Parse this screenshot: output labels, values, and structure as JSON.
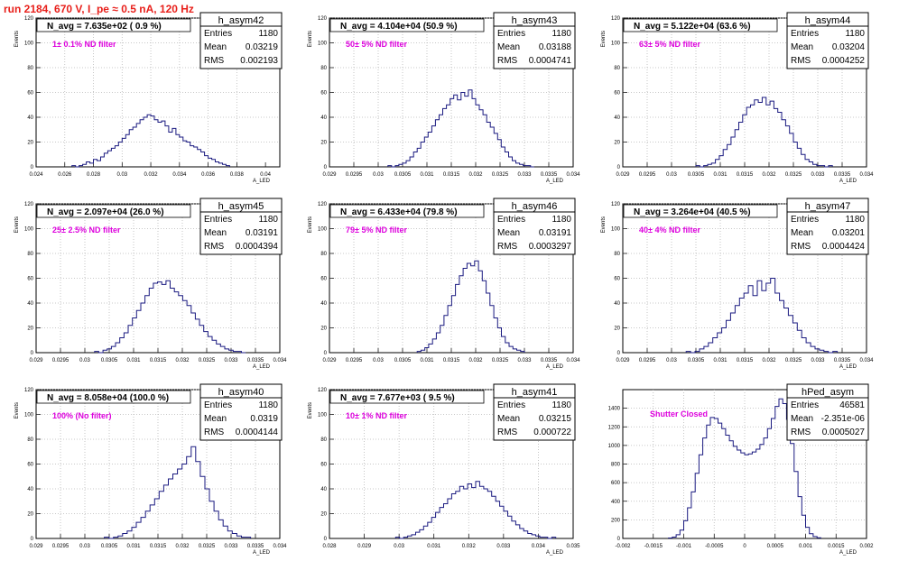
{
  "header": {
    "run_title": "run 2184,   670 V, I_pe ≈ 0.5 nA, 120 Hz"
  },
  "colors": {
    "histogram_line": "#1a1a80",
    "filter_label": "#dd00dd",
    "title": "#e8201b",
    "grid": "#b8b8b8"
  },
  "chart_data": [
    {
      "type": "histogram",
      "name": "h_asym42",
      "navg": "N_avg = 7.635e+02 ( 0.9 %)",
      "filter": "1± 0.1% ND filter",
      "stats": {
        "entries": "1180",
        "mean": "0.03219",
        "rms": "0.002193"
      },
      "xlabel": "A_LED",
      "ylabel": "Events",
      "xlim": [
        0.024,
        0.041
      ],
      "ylim": [
        0,
        120
      ],
      "grid": true,
      "xticks": [
        "0.024",
        "0.026",
        "0.028",
        "0.03",
        "0.032",
        "0.034",
        "0.036",
        "0.038",
        "0.04"
      ],
      "yticks": [
        "0",
        "20",
        "40",
        "60",
        "80",
        "100",
        "120"
      ],
      "bins": {
        "lo": 0.0265,
        "hi": 0.0375,
        "counts": [
          1,
          0,
          1,
          2,
          4,
          3,
          6,
          5,
          8,
          11,
          13,
          15,
          17,
          20,
          23,
          26,
          30,
          32,
          35,
          38,
          40,
          42,
          41,
          38,
          36,
          37,
          33,
          28,
          31,
          26,
          24,
          21,
          20,
          17,
          16,
          14,
          12,
          9,
          7,
          6,
          4,
          3,
          2,
          1
        ]
      }
    },
    {
      "type": "histogram",
      "name": "h_asym43",
      "navg": "N_avg = 4.104e+04 (50.9 %)",
      "filter": "50± 5% ND filter",
      "stats": {
        "entries": "1180",
        "mean": "0.03188",
        "rms": "0.0004741"
      },
      "xlabel": "A_LED",
      "ylabel": "Events",
      "xlim": [
        0.029,
        0.034
      ],
      "ylim": [
        0,
        120
      ],
      "grid": true,
      "xticks": [
        "0.029",
        "0.0295",
        "0.03",
        "0.0305",
        "0.031",
        "0.0315",
        "0.032",
        "0.0325",
        "0.033",
        "0.0335",
        "0.034"
      ],
      "yticks": [
        "0",
        "20",
        "40",
        "60",
        "80",
        "100",
        "120"
      ],
      "bins": {
        "lo": 0.0302,
        "hi": 0.0332,
        "counts": [
          1,
          0,
          1,
          2,
          3,
          5,
          8,
          12,
          15,
          20,
          24,
          28,
          33,
          38,
          42,
          47,
          50,
          55,
          58,
          54,
          60,
          57,
          62,
          55,
          50,
          46,
          42,
          36,
          32,
          27,
          22,
          16,
          12,
          8,
          5,
          3,
          2,
          1,
          1,
          0
        ]
      }
    },
    {
      "type": "histogram",
      "name": "h_asym44",
      "navg": "N_avg = 5.122e+04 (63.6 %)",
      "filter": "63± 5% ND filter",
      "stats": {
        "entries": "1180",
        "mean": "0.03204",
        "rms": "0.0004252"
      },
      "xlabel": "A_LED",
      "ylabel": "Events",
      "xlim": [
        0.029,
        0.034
      ],
      "ylim": [
        0,
        120
      ],
      "grid": true,
      "xticks": [
        "0.029",
        "0.0295",
        "0.03",
        "0.0305",
        "0.031",
        "0.0315",
        "0.032",
        "0.0325",
        "0.033",
        "0.0335",
        "0.034"
      ],
      "yticks": [
        "0",
        "20",
        "40",
        "60",
        "80",
        "100",
        "120"
      ],
      "bins": {
        "lo": 0.0305,
        "hi": 0.0333,
        "counts": [
          1,
          0,
          1,
          2,
          3,
          6,
          9,
          14,
          18,
          24,
          30,
          36,
          42,
          48,
          50,
          54,
          52,
          56,
          50,
          53,
          47,
          44,
          38,
          33,
          27,
          20,
          15,
          10,
          6,
          4,
          2,
          1,
          1,
          0,
          1
        ]
      }
    },
    {
      "type": "histogram",
      "name": "h_asym45",
      "navg": "N_avg = 2.097e+04 (26.0 %)",
      "filter": "25± 2.5% ND filter",
      "stats": {
        "entries": "1180",
        "mean": "0.03191",
        "rms": "0.0004394"
      },
      "xlabel": "A_LED",
      "ylabel": "Events",
      "xlim": [
        0.029,
        0.034
      ],
      "ylim": [
        0,
        120
      ],
      "grid": true,
      "xticks": [
        "0.029",
        "0.0295",
        "0.03",
        "0.0305",
        "0.031",
        "0.0315",
        "0.032",
        "0.0325",
        "0.033",
        "0.0335",
        "0.034"
      ],
      "yticks": [
        "0",
        "20",
        "40",
        "60",
        "80",
        "100",
        "120"
      ],
      "bins": {
        "lo": 0.0302,
        "hi": 0.0333,
        "counts": [
          1,
          0,
          2,
          3,
          5,
          8,
          12,
          16,
          22,
          28,
          34,
          40,
          46,
          52,
          56,
          57,
          55,
          58,
          52,
          49,
          46,
          42,
          38,
          32,
          27,
          22,
          17,
          13,
          10,
          7,
          5,
          3,
          2,
          1,
          1,
          0
        ]
      }
    },
    {
      "type": "histogram",
      "name": "h_asym46",
      "navg": "N_avg = 6.433e+04 (79.8 %)",
      "filter": "79± 5% ND filter",
      "stats": {
        "entries": "1180",
        "mean": "0.03191",
        "rms": "0.0003297"
      },
      "xlabel": "A_LED",
      "ylabel": "Events",
      "xlim": [
        0.029,
        0.034
      ],
      "ylim": [
        0,
        120
      ],
      "grid": true,
      "xticks": [
        "0.029",
        "0.0295",
        "0.03",
        "0.0305",
        "0.031",
        "0.0315",
        "0.032",
        "0.0325",
        "0.033",
        "0.0335",
        "0.034"
      ],
      "yticks": [
        "0",
        "20",
        "40",
        "60",
        "80",
        "100",
        "120"
      ],
      "bins": {
        "lo": 0.0308,
        "hi": 0.033,
        "counts": [
          1,
          2,
          4,
          7,
          11,
          16,
          22,
          30,
          38,
          46,
          55,
          62,
          68,
          72,
          70,
          74,
          66,
          58,
          48,
          38,
          28,
          20,
          13,
          8,
          5,
          3,
          2,
          1
        ]
      }
    },
    {
      "type": "histogram",
      "name": "h_asym47",
      "navg": "N_avg = 3.264e+04 (40.5 %)",
      "filter": "40± 4% ND filter",
      "stats": {
        "entries": "1180",
        "mean": "0.03201",
        "rms": "0.0004424"
      },
      "xlabel": "A_LED",
      "ylabel": "Events",
      "xlim": [
        0.029,
        0.034
      ],
      "ylim": [
        0,
        120
      ],
      "grid": true,
      "xticks": [
        "0.029",
        "0.0295",
        "0.03",
        "0.0305",
        "0.031",
        "0.0315",
        "0.032",
        "0.0325",
        "0.033",
        "0.0335",
        "0.034"
      ],
      "yticks": [
        "0",
        "20",
        "40",
        "60",
        "80",
        "100",
        "120"
      ],
      "bins": {
        "lo": 0.0303,
        "hi": 0.0334,
        "counts": [
          1,
          0,
          1,
          3,
          5,
          8,
          12,
          16,
          20,
          26,
          32,
          38,
          44,
          48,
          54,
          46,
          58,
          50,
          56,
          60,
          48,
          42,
          36,
          30,
          24,
          18,
          12,
          8,
          5,
          3,
          2,
          1,
          0,
          1
        ]
      }
    },
    {
      "type": "histogram",
      "name": "h_asym40",
      "navg": "N_avg = 8.058e+04 (100.0 %)",
      "filter": "100% (No filter)",
      "stats": {
        "entries": "1180",
        "mean": "0.0319",
        "rms": "0.0004144"
      },
      "xlabel": "A_LED",
      "ylabel": "Events",
      "xlim": [
        0.029,
        0.034
      ],
      "ylim": [
        0,
        120
      ],
      "grid": true,
      "xticks": [
        "0.029",
        "0.0295",
        "0.03",
        "0.0305",
        "0.031",
        "0.0315",
        "0.032",
        "0.0325",
        "0.033",
        "0.0335",
        "0.034"
      ],
      "yticks": [
        "0",
        "20",
        "40",
        "60",
        "80",
        "100",
        "120"
      ],
      "bins": {
        "lo": 0.0304,
        "hi": 0.0334,
        "counts": [
          1,
          0,
          1,
          2,
          4,
          6,
          9,
          13,
          17,
          22,
          27,
          32,
          38,
          43,
          48,
          52,
          56,
          60,
          66,
          74,
          62,
          50,
          40,
          30,
          22,
          15,
          10,
          6,
          4,
          2,
          1,
          1
        ]
      }
    },
    {
      "type": "histogram",
      "name": "h_asym41",
      "navg": "N_avg = 7.677e+03 ( 9.5 %)",
      "filter": "10± 1% ND filter",
      "stats": {
        "entries": "1180",
        "mean": "0.03215",
        "rms": "0.000722"
      },
      "xlabel": "A_LED",
      "ylabel": "Events",
      "xlim": [
        0.028,
        0.035
      ],
      "ylim": [
        0,
        120
      ],
      "grid": true,
      "xticks": [
        "0.028",
        "0.029",
        "0.03",
        "0.031",
        "0.032",
        "0.033",
        "0.034",
        "0.035"
      ],
      "yticks": [
        "0",
        "20",
        "40",
        "60",
        "80",
        "100",
        "120"
      ],
      "bins": {
        "lo": 0.0299,
        "hi": 0.0345,
        "counts": [
          1,
          0,
          1,
          2,
          3,
          5,
          7,
          10,
          13,
          17,
          21,
          25,
          28,
          32,
          36,
          38,
          42,
          40,
          44,
          41,
          46,
          42,
          40,
          38,
          34,
          30,
          26,
          22,
          18,
          14,
          11,
          8,
          6,
          4,
          3,
          2,
          1,
          1,
          0,
          1
        ]
      }
    },
    {
      "type": "histogram",
      "name": "hPed_asym",
      "navg": "",
      "filter": "Shutter Closed",
      "stats": {
        "entries": "46581",
        "mean": "-2.351e-06",
        "rms": "0.0005027"
      },
      "xlabel": "A_LED",
      "ylabel": "",
      "xlim": [
        -0.002,
        0.002
      ],
      "ylim": [
        0,
        1600
      ],
      "grid": true,
      "xticks": [
        "-0.002",
        "-0.0015",
        "-0.001",
        "-0.0005",
        "0",
        "0.0005",
        "0.001",
        "0.0015",
        "0.002"
      ],
      "yticks": [
        "0",
        "200",
        "400",
        "600",
        "800",
        "1000",
        "1200",
        "1400"
      ],
      "bins": {
        "lo": -0.00125,
        "hi": 0.00125,
        "counts": [
          5,
          15,
          40,
          90,
          190,
          330,
          500,
          700,
          900,
          1080,
          1220,
          1300,
          1290,
          1240,
          1180,
          1110,
          1050,
          990,
          950,
          920,
          900,
          910,
          930,
          960,
          1010,
          1080,
          1180,
          1290,
          1420,
          1500,
          1450,
          1280,
          1020,
          720,
          450,
          250,
          120,
          50,
          20,
          8
        ]
      }
    }
  ]
}
